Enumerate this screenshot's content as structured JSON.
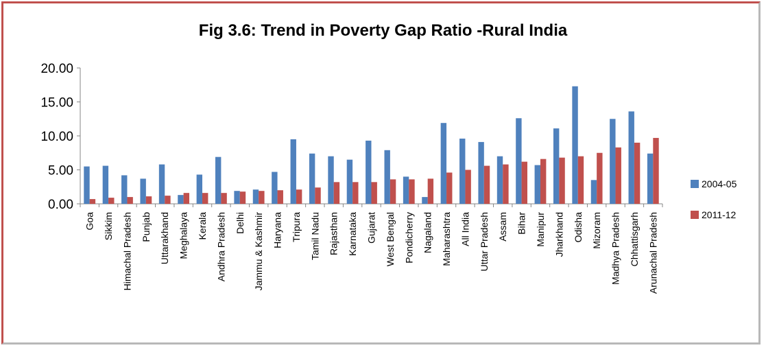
{
  "chart_data": {
    "type": "bar",
    "title": "Fig 3.6: Trend in Poverty Gap Ratio -Rural India",
    "xlabel": "",
    "ylabel": "",
    "ylim": [
      0,
      20
    ],
    "yticks": [
      "0.00",
      "5.00",
      "10.00",
      "15.00",
      "20.00"
    ],
    "grid": false,
    "legend_position": "right",
    "categories": [
      "Goa",
      "Sikkim",
      "Himachal Pradesh",
      "Punjab",
      "Uttarakhand",
      "Meghalaya",
      "Kerala",
      "Andhra Pradesh",
      "Delhi",
      "Jammu & Kashmir",
      "Haryana",
      "Tripura",
      "Tamil Nadu",
      "Rajasthan",
      "Karnataka",
      "Gujarat",
      "West Bengal",
      "Pondicherry",
      "Nagaland",
      "Maharashtra",
      "All India",
      "Uttar Pradesh",
      "Assam",
      "Bihar",
      "Manipur",
      "Jharkhand",
      "Odisha",
      "Mizoram",
      "Madhya Pradesh",
      "Chhattisgarh",
      "Arunachal Pradesh"
    ],
    "series": [
      {
        "name": "2004-05",
        "color": "#4f81bd",
        "values": [
          5.5,
          5.6,
          4.2,
          3.7,
          5.8,
          1.3,
          4.3,
          6.9,
          1.9,
          2.1,
          4.7,
          9.5,
          7.4,
          7.0,
          6.5,
          9.3,
          7.9,
          4.0,
          1.0,
          11.9,
          9.6,
          9.1,
          7.0,
          12.6,
          5.7,
          11.1,
          17.3,
          3.5,
          12.5,
          13.6,
          7.4
        ]
      },
      {
        "name": "2011-12",
        "color": "#c0504d",
        "values": [
          0.7,
          0.9,
          1.0,
          1.1,
          1.2,
          1.6,
          1.6,
          1.6,
          1.8,
          1.9,
          2.0,
          2.1,
          2.4,
          3.2,
          3.2,
          3.2,
          3.6,
          3.6,
          3.7,
          4.6,
          5.0,
          5.6,
          5.8,
          6.2,
          6.6,
          6.8,
          7.0,
          7.5,
          8.3,
          9.0,
          9.7
        ]
      }
    ]
  }
}
